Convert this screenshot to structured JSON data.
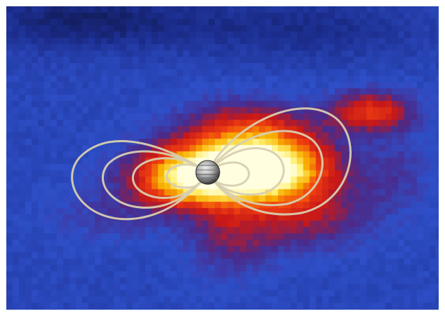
{
  "image": {
    "subject": "jupiter-radiation-belt-map",
    "colormap": [
      "#0b1030",
      "#1b2c8c",
      "#2e4fc8",
      "#4a2a8a",
      "#c81818",
      "#f04010",
      "#f8b000",
      "#fff070",
      "#ffffe0"
    ],
    "field_line_color": "#d8cfb0",
    "planet_colors": [
      "#3a3a3a",
      "#8a8a8a",
      "#d0d0d0",
      "#f4f4f4"
    ]
  }
}
